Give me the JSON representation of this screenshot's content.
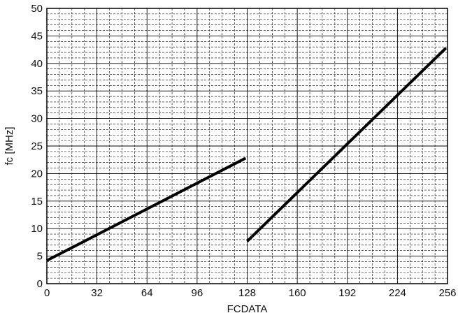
{
  "chart_data": {
    "type": "line",
    "title": "",
    "xlabel": "FCDATA",
    "ylabel": "fc [MHz]",
    "xlim": [
      0,
      256
    ],
    "ylim": [
      0,
      50
    ],
    "x_ticks": [
      "0",
      "32",
      "64",
      "96",
      "128",
      "160",
      "192",
      "224",
      "256"
    ],
    "y_ticks": [
      "0",
      "5",
      "10",
      "15",
      "20",
      "25",
      "30",
      "35",
      "40",
      "45",
      "50"
    ],
    "grid": true,
    "legend": "none",
    "line_color": "#000000",
    "series": [
      {
        "points": [
          [
            0,
            4.2
          ],
          [
            127,
            22.8
          ]
        ]
      },
      {
        "points": [
          [
            128,
            7.7
          ],
          [
            255,
            42.8
          ]
        ]
      }
    ]
  }
}
